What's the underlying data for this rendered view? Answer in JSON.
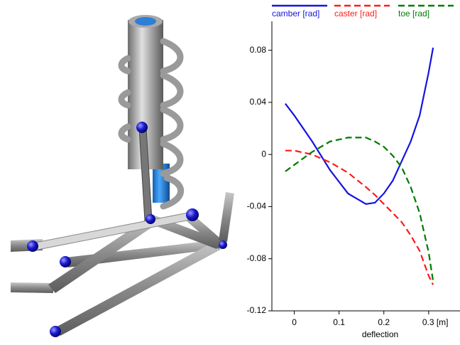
{
  "chart_data": {
    "type": "line",
    "x": [
      -0.02,
      0,
      0.04,
      0.08,
      0.12,
      0.16,
      0.18,
      0.2,
      0.22,
      0.24,
      0.26,
      0.28,
      0.3,
      0.31
    ],
    "series": [
      {
        "name": "camber [rad]",
        "color": "#1414e0",
        "dash": "solid",
        "values": [
          0.039,
          0.03,
          0.01,
          -0.012,
          -0.03,
          -0.038,
          -0.037,
          -0.03,
          -0.02,
          -0.005,
          0.01,
          0.03,
          0.063,
          0.082
        ]
      },
      {
        "name": "caster [rad]",
        "color": "#ff1a1a",
        "dash": "dashed",
        "values": [
          0.003,
          0.003,
          0.0,
          -0.006,
          -0.014,
          -0.025,
          -0.031,
          -0.038,
          -0.045,
          -0.052,
          -0.062,
          -0.074,
          -0.093,
          -0.1
        ]
      },
      {
        "name": "toe [rad]",
        "color": "#007a00",
        "dash": "dashed",
        "values": [
          -0.013,
          -0.008,
          0.002,
          0.01,
          0.013,
          0.013,
          0.01,
          0.006,
          -0.001,
          -0.01,
          -0.025,
          -0.045,
          -0.075,
          -0.097
        ]
      }
    ],
    "xlabel": "deflection",
    "xlim": [
      -0.05,
      0.37
    ],
    "xticks": [
      0,
      0.1,
      0.2,
      {
        "value": 0.3,
        "label": "0.3 [m]"
      }
    ],
    "ylim": [
      -0.12,
      0.1
    ],
    "yticks": [
      -0.12,
      -0.08,
      -0.04,
      0,
      0.04,
      0.08
    ],
    "grid": false
  }
}
